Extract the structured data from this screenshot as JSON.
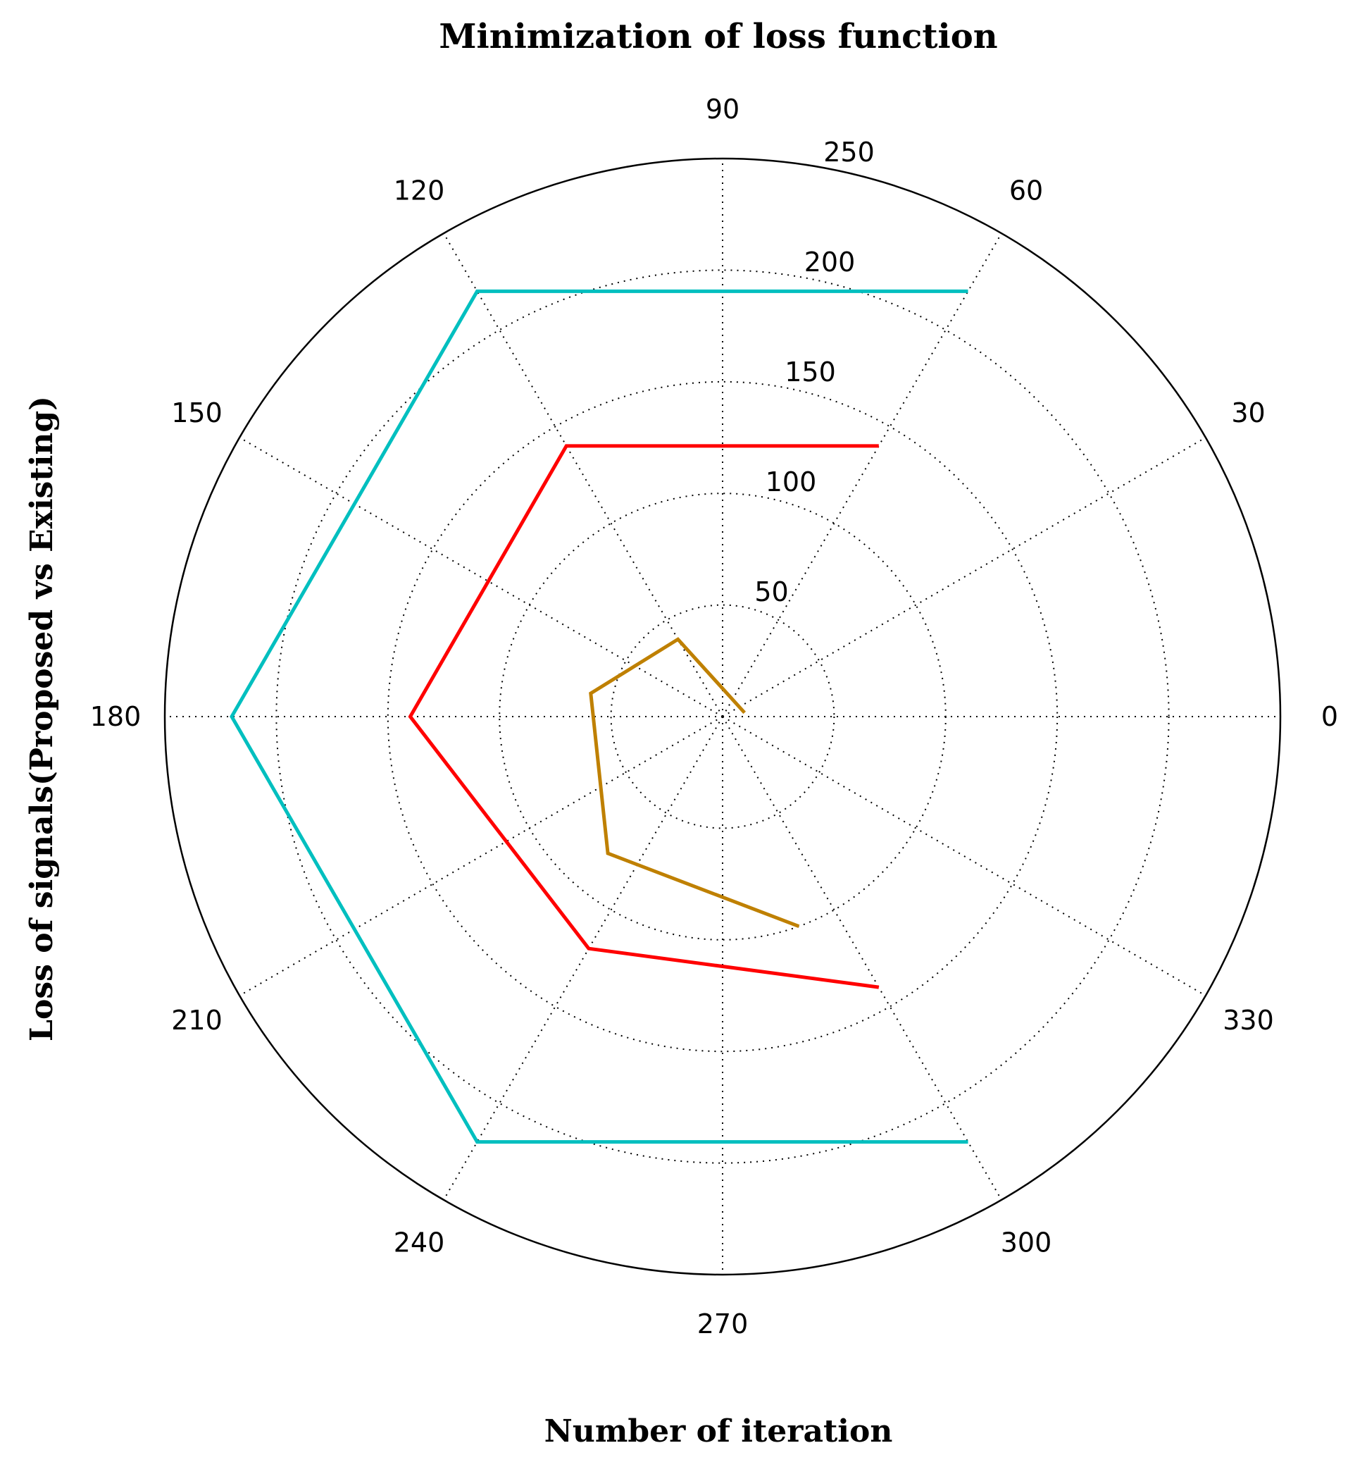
{
  "chart_data": {
    "type": "polar-line",
    "title": "Minimization of loss function",
    "xlabel": "Number of iteration",
    "ylabel": "Loss of signals(Proposed vs Existing)",
    "angular_ticks": [
      "0",
      "30",
      "60",
      "90",
      "120",
      "150",
      "180",
      "210",
      "240",
      "270",
      "300",
      "330"
    ],
    "angular_tick_values": [
      0,
      30,
      60,
      90,
      120,
      150,
      180,
      210,
      240,
      270,
      300,
      330
    ],
    "radial_ticks": [
      "50",
      "100",
      "150",
      "200",
      "250"
    ],
    "radial_tick_values": [
      50,
      100,
      150,
      200,
      250
    ],
    "rlim": [
      0,
      250
    ],
    "radial_label_angle_deg": 80,
    "grid": true,
    "series": [
      {
        "color": "#00bfbf",
        "points": [
          {
            "theta_deg": 60,
            "r": 220
          },
          {
            "theta_deg": 120,
            "r": 220
          },
          {
            "theta_deg": 180,
            "r": 220
          },
          {
            "theta_deg": 240,
            "r": 220
          },
          {
            "theta_deg": 300,
            "r": 220
          }
        ]
      },
      {
        "color": "#ff0000",
        "points": [
          {
            "theta_deg": 60,
            "r": 140
          },
          {
            "theta_deg": 120,
            "r": 140
          },
          {
            "theta_deg": 180,
            "r": 140
          },
          {
            "theta_deg": 240,
            "r": 120
          },
          {
            "theta_deg": 300,
            "r": 140
          }
        ]
      },
      {
        "color": "#bf8000",
        "points": [
          {
            "theta_deg": 10,
            "r": 10
          },
          {
            "theta_deg": 120,
            "r": 40
          },
          {
            "theta_deg": 170,
            "r": 60
          },
          {
            "theta_deg": 230,
            "r": 80
          },
          {
            "theta_deg": 290,
            "r": 100
          }
        ]
      }
    ]
  }
}
